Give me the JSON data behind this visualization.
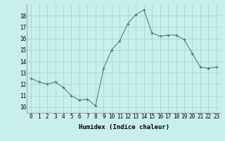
{
  "x": [
    0,
    1,
    2,
    3,
    4,
    5,
    6,
    7,
    8,
    9,
    10,
    11,
    12,
    13,
    14,
    15,
    16,
    17,
    18,
    19,
    20,
    21,
    22,
    23
  ],
  "y": [
    12.5,
    12.2,
    12.0,
    12.2,
    11.7,
    11.0,
    10.6,
    10.7,
    10.1,
    13.4,
    15.0,
    15.8,
    17.3,
    18.1,
    18.5,
    16.5,
    16.2,
    16.3,
    16.3,
    15.9,
    14.7,
    13.5,
    13.4,
    13.5
  ],
  "line_color": "#2d7d6e",
  "marker": "+",
  "bg_color": "#c8eeed",
  "grid_color": "#aaccca",
  "xlabel": "Humidex (Indice chaleur)",
  "xlim": [
    -0.5,
    23.5
  ],
  "ylim": [
    9.5,
    19.0
  ],
  "yticks": [
    10,
    11,
    12,
    13,
    14,
    15,
    16,
    17,
    18
  ],
  "xticks": [
    0,
    1,
    2,
    3,
    4,
    5,
    6,
    7,
    8,
    9,
    10,
    11,
    12,
    13,
    14,
    15,
    16,
    17,
    18,
    19,
    20,
    21,
    22,
    23
  ],
  "label_fontsize": 6.5,
  "tick_fontsize": 5.5
}
